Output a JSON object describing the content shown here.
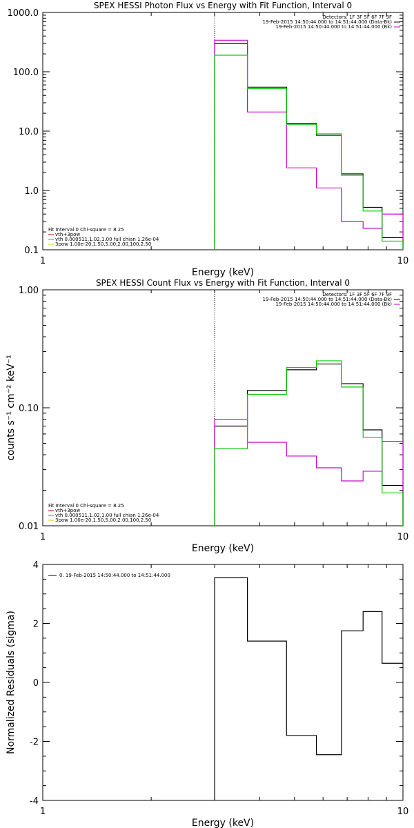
{
  "chart_data": [
    {
      "type": "line",
      "title": "SPEX HESSI Photon Flux vs Energy with Fit Function, Interval 0",
      "xlabel": "Energy (keV)",
      "ylabel": "",
      "xscale": "log",
      "yscale": "log",
      "xlim": [
        1,
        10
      ],
      "ylim": [
        0.1,
        1000
      ],
      "xticks": [
        {
          "v": 1,
          "label": "1"
        },
        {
          "v": 10,
          "label": "10"
        }
      ],
      "yticks": [
        {
          "v": 0.1,
          "label": "0.1"
        },
        {
          "v": 1,
          "label": "1.0"
        },
        {
          "v": 10,
          "label": "10.0"
        },
        {
          "v": 100,
          "label": "100.0"
        },
        {
          "v": 1000,
          "label": "1000.0"
        }
      ],
      "edges": [
        3,
        3.7,
        4.75,
        5.75,
        6.75,
        7.75,
        8.75,
        10
      ],
      "vline": 3,
      "series": [
        {
          "name": "",
          "color": "#000000",
          "values": [
            300,
            55,
            13.5,
            8.5,
            1.9,
            0.52,
            0.16
          ]
        },
        {
          "name": "",
          "color": "#cc00cc",
          "values": [
            340,
            21,
            2.4,
            1.1,
            0.3,
            0.23,
            0.4
          ]
        },
        {
          "name": "",
          "color": "#00cc00",
          "values": [
            190,
            52,
            13,
            9,
            1.8,
            0.45,
            0.14
          ]
        }
      ],
      "legend_tr": [
        {
          "text": "Detectors: 1F 3F 5F 6F 7F 9F",
          "color": ""
        },
        {
          "text": "19-Feb-2015 14:50:44.000 to 14:51:44.000 (Data-Bk)",
          "color": "#000000"
        },
        {
          "text": "19-Feb-2015 14:50:44.000 to 14:51:44.000 (Bk)",
          "color": "#cc00cc"
        }
      ],
      "legend_bl": [
        {
          "text": "Fit Interval 0   Chi-square = 8.25",
          "color": ""
        },
        {
          "text": "vth+3pow",
          "color": "#cc0000"
        },
        {
          "text": "vth 0.000511,1.02,1.00  full chian 1.26e-04",
          "color": "#00cc00"
        },
        {
          "text": "3pow 1.00e-20,1.50,5.00,2.00,100,2.50",
          "color": "#cccc00"
        }
      ]
    },
    {
      "type": "line",
      "title": "SPEX HESSI Count Flux vs Energy with Fit Function, Interval 0",
      "xlabel": "Energy (keV)",
      "ylabel": "counts s⁻¹ cm⁻² keV⁻¹",
      "xscale": "log",
      "yscale": "log",
      "xlim": [
        1,
        10
      ],
      "ylim": [
        0.01,
        1
      ],
      "xticks": [
        {
          "v": 1,
          "label": "1"
        },
        {
          "v": 10,
          "label": "10"
        }
      ],
      "yticks": [
        {
          "v": 0.01,
          "label": "0.01"
        },
        {
          "v": 0.1,
          "label": "0.10"
        },
        {
          "v": 1,
          "label": "1.00"
        }
      ],
      "edges": [
        3,
        3.7,
        4.75,
        5.75,
        6.75,
        7.75,
        8.75,
        10
      ],
      "vline": 3,
      "series": [
        {
          "name": "",
          "color": "#000000",
          "values": [
            0.07,
            0.14,
            0.21,
            0.235,
            0.16,
            0.065,
            0.022
          ]
        },
        {
          "name": "",
          "color": "#cc00cc",
          "values": [
            0.08,
            0.051,
            0.039,
            0.031,
            0.024,
            0.029,
            0.052
          ]
        },
        {
          "name": "",
          "color": "#00cc00",
          "values": [
            0.045,
            0.13,
            0.22,
            0.25,
            0.15,
            0.056,
            0.019
          ]
        }
      ],
      "legend_tr": [
        {
          "text": "Detectors: 1F 3F 5F 6F 7F 9F",
          "color": ""
        },
        {
          "text": "19-Feb-2015 14:50:44.000 to 14:51:44.000 (Data-Bk)",
          "color": "#000000"
        },
        {
          "text": "19-Feb-2015 14:50:44.000 to 14:51:44.000 (Bk)",
          "color": "#cc00cc"
        }
      ],
      "legend_bl": [
        {
          "text": "Fit Interval 0   Chi-square = 8.25",
          "color": ""
        },
        {
          "text": "vth+3pow",
          "color": "#cc0000"
        },
        {
          "text": "vth 0.000511,1.02,1.00  full chian 1.26e-04",
          "color": "#00cc00"
        },
        {
          "text": "3pow 1.00e-20,1.50,5.00,2.00,100,2.50",
          "color": "#cccc00"
        }
      ]
    },
    {
      "type": "line",
      "title": "",
      "xlabel": "Energy (keV)",
      "ylabel": "Normalized Residuals (sigma)",
      "xscale": "log",
      "yscale": "linear",
      "xlim": [
        1,
        10
      ],
      "ylim": [
        -4,
        4
      ],
      "xticks": [
        {
          "v": 1,
          "label": "1"
        },
        {
          "v": 10,
          "label": "10"
        }
      ],
      "yticks": [
        {
          "v": -4,
          "label": "-4"
        },
        {
          "v": -2,
          "label": "-2"
        },
        {
          "v": 0,
          "label": "0"
        },
        {
          "v": 2,
          "label": "2"
        },
        {
          "v": 4,
          "label": "4"
        }
      ],
      "edges": [
        3,
        3.7,
        4.75,
        5.75,
        6.75,
        7.75,
        8.75,
        10
      ],
      "vline": null,
      "series": [
        {
          "name": "0. 19-Feb-2015 14:50:44.000 to 14:51:44.000",
          "color": "#000000",
          "values": [
            3.55,
            1.4,
            -1.8,
            -2.45,
            1.75,
            2.4,
            0.65
          ]
        }
      ],
      "legend_tr": [],
      "legend_bl": [],
      "legend_tl": [
        {
          "text": "0. 19-Feb-2015 14:50:44.000 to 14:51:44.000",
          "color": "#000000"
        }
      ]
    }
  ]
}
